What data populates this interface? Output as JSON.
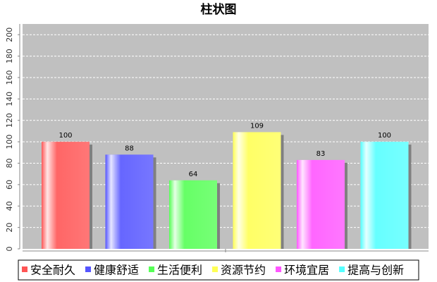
{
  "chart_data": {
    "type": "bar",
    "title": "柱状图",
    "categories": [
      null
    ],
    "series": [
      {
        "name": "安全耐久",
        "color": "#ff5555",
        "values": [
          100
        ]
      },
      {
        "name": "健康舒适",
        "color": "#5555ff",
        "values": [
          88
        ]
      },
      {
        "name": "生活便利",
        "color": "#55ff55",
        "values": [
          64
        ]
      },
      {
        "name": "资源节约",
        "color": "#ffff55",
        "values": [
          109
        ]
      },
      {
        "name": "环境宜居",
        "color": "#ff55ff",
        "values": [
          83
        ]
      },
      {
        "name": "提高与创新",
        "color": "#55ffff",
        "values": [
          100
        ]
      }
    ],
    "ylim": [
      0,
      210
    ],
    "yticks": [
      0,
      20,
      40,
      60,
      80,
      100,
      120,
      140,
      160,
      180,
      200
    ],
    "grid": true,
    "legend": "bottom"
  }
}
